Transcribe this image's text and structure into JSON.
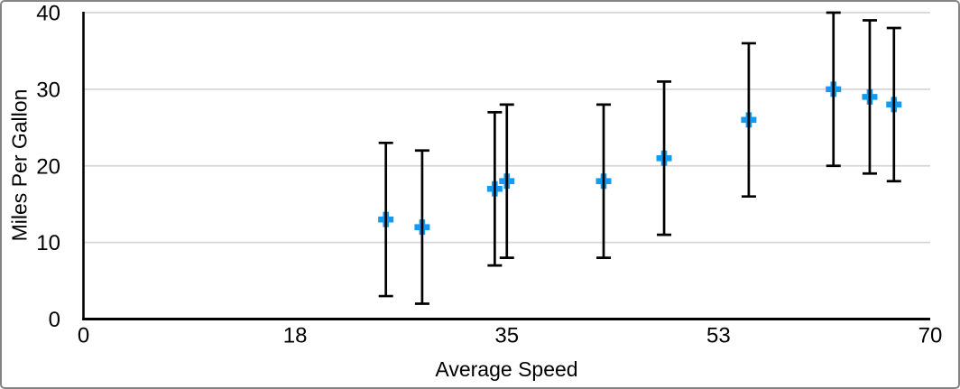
{
  "chart_data": {
    "type": "scatter",
    "title": "",
    "xlabel": "Average Speed",
    "ylabel": "Miles Per Gallon",
    "xlim": [
      0,
      70
    ],
    "ylim": [
      0,
      40
    ],
    "x_ticks": [
      {
        "value": 0,
        "label": "0"
      },
      {
        "value": 17.5,
        "label": "18"
      },
      {
        "value": 35,
        "label": "35"
      },
      {
        "value": 52.5,
        "label": "53"
      },
      {
        "value": 70,
        "label": "70"
      }
    ],
    "y_ticks": [
      {
        "value": 0,
        "label": "0"
      },
      {
        "value": 10,
        "label": "10"
      },
      {
        "value": 20,
        "label": "20"
      },
      {
        "value": 30,
        "label": "30"
      },
      {
        "value": 40,
        "label": "40"
      }
    ],
    "grid": "horizontal-only",
    "legend": "none",
    "marker": {
      "shape": "plus",
      "color": "#149af0",
      "size": 17
    },
    "error_bars": {
      "direction": "vertical",
      "magnitude": 10,
      "color": "#000000",
      "cap_width": 16
    },
    "axis_color": "#000000",
    "grid_color": "#d6d6d6",
    "series": [
      {
        "name": "Miles Per Gallon",
        "points": [
          {
            "x": 25,
            "y": 13,
            "err": 10
          },
          {
            "x": 28,
            "y": 12,
            "err": 10
          },
          {
            "x": 34,
            "y": 17,
            "err": 10
          },
          {
            "x": 35,
            "y": 18,
            "err": 10
          },
          {
            "x": 43,
            "y": 18,
            "err": 10
          },
          {
            "x": 48,
            "y": 21,
            "err": 10
          },
          {
            "x": 55,
            "y": 26,
            "err": 10
          },
          {
            "x": 62,
            "y": 30,
            "err": 10
          },
          {
            "x": 65,
            "y": 29,
            "err": 10
          },
          {
            "x": 67,
            "y": 28,
            "err": 10
          }
        ]
      }
    ]
  }
}
